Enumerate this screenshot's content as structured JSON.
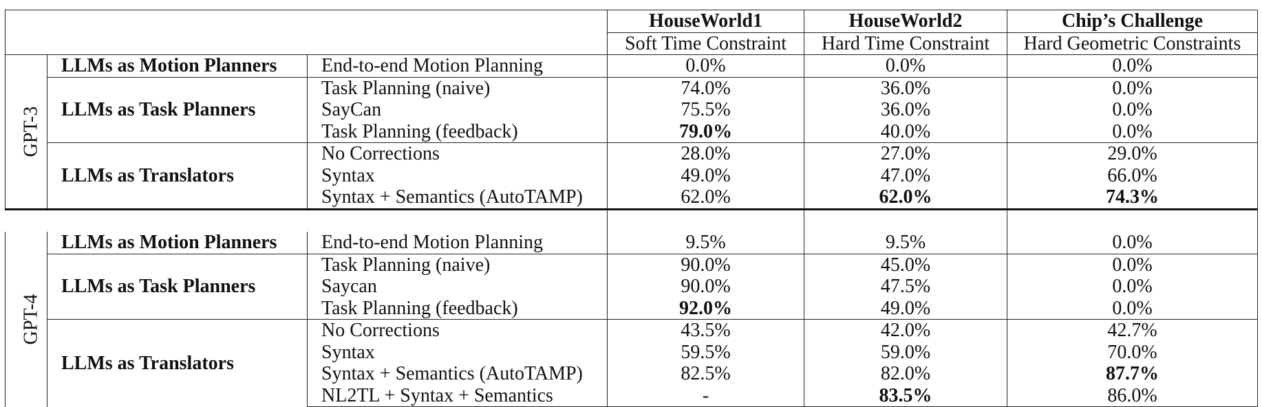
{
  "table": {
    "columns": [
      {
        "title": "HouseWorld1",
        "subtitle": "Soft Time Constraint"
      },
      {
        "title": "HouseWorld2",
        "subtitle": "Hard Time Constraint"
      },
      {
        "title": "Chip’s Challenge",
        "subtitle": "Hard Geometric Constraints"
      }
    ],
    "gpt3": {
      "model": "GPT-3",
      "motion": {
        "category": "LLMs as Motion Planners",
        "rows": [
          {
            "method": "End-to-end Motion Planning",
            "values": [
              "0.0%",
              "0.0%",
              "0.0%"
            ]
          }
        ]
      },
      "task": {
        "category": "LLMs as Task Planners",
        "rows": [
          {
            "method": "Task Planning (naive)",
            "values": [
              "74.0%",
              "36.0%",
              "0.0%"
            ]
          },
          {
            "method": "SayCan",
            "values": [
              "75.5%",
              "36.0%",
              "0.0%"
            ]
          },
          {
            "method": "Task Planning (feedback)",
            "values": [
              "79.0%",
              "40.0%",
              "0.0%"
            ]
          }
        ]
      },
      "translators": {
        "category": "LLMs as Translators",
        "rows": [
          {
            "method": "No Corrections",
            "values": [
              "28.0%",
              "27.0%",
              "29.0%"
            ]
          },
          {
            "method": "Syntax",
            "values": [
              "49.0%",
              "47.0%",
              "66.0%"
            ]
          },
          {
            "method": "Syntax + Semantics (AutoTAMP)",
            "values": [
              "62.0%",
              "62.0%",
              "74.3%"
            ]
          }
        ]
      }
    },
    "gpt4": {
      "model": "GPT-4",
      "motion": {
        "category": "LLMs as Motion Planners",
        "rows": [
          {
            "method": "End-to-end Motion Planning",
            "values": [
              "9.5%",
              "9.5%",
              "0.0%"
            ]
          }
        ]
      },
      "task": {
        "category": "LLMs as Task Planners",
        "rows": [
          {
            "method": "Task Planning (naive)",
            "values": [
              "90.0%",
              "45.0%",
              "0.0%"
            ]
          },
          {
            "method": "Saycan",
            "values": [
              "90.0%",
              "47.5%",
              "0.0%"
            ]
          },
          {
            "method": "Task Planning (feedback)",
            "values": [
              "92.0%",
              "49.0%",
              "0.0%"
            ]
          }
        ]
      },
      "translators": {
        "category": "LLMs as Translators",
        "rows": [
          {
            "method": "No Corrections",
            "values": [
              "43.5%",
              "42.0%",
              "42.7%"
            ]
          },
          {
            "method": "Syntax",
            "values": [
              "59.5%",
              "59.0%",
              "70.0%"
            ]
          },
          {
            "method": "Syntax + Semantics (AutoTAMP)",
            "values": [
              "82.5%",
              "82.0%",
              "87.7%"
            ]
          },
          {
            "method": "NL2TL + Syntax + Semantics",
            "values": [
              "-",
              "83.5%",
              "86.0%"
            ]
          }
        ]
      }
    }
  }
}
